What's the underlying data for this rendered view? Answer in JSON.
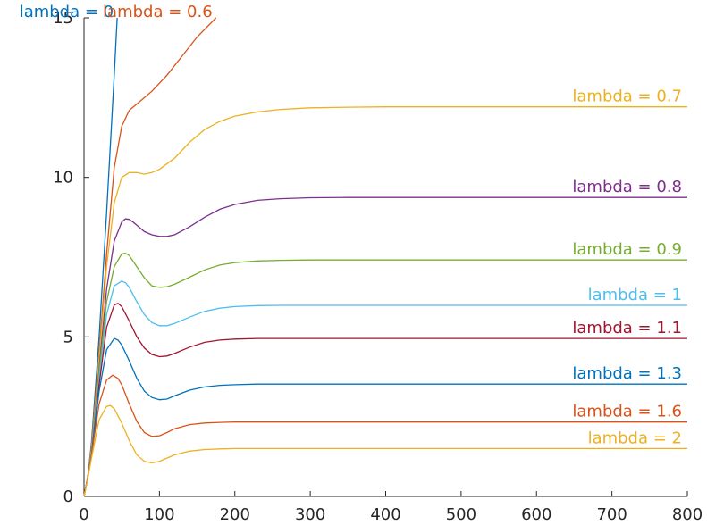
{
  "chart_data": {
    "type": "line",
    "title": "",
    "xlabel": "",
    "ylabel": "",
    "xlim": [
      0,
      800
    ],
    "ylim": [
      0,
      15
    ],
    "x_ticks": [
      0,
      100,
      200,
      300,
      400,
      500,
      600,
      700,
      800
    ],
    "y_ticks": [
      0,
      5,
      10,
      15
    ],
    "grid": false,
    "legend": "none",
    "series": [
      {
        "name": "lambda = 0",
        "color": "#0072BD",
        "x": [
          0,
          5,
          10,
          20,
          30,
          40,
          44
        ],
        "y": [
          0,
          0.6,
          1.7,
          5.0,
          8.9,
          13.2,
          15.0
        ]
      },
      {
        "name": "lambda = 0.6",
        "color": "#D95319",
        "x": [
          0,
          5,
          10,
          20,
          30,
          40,
          50,
          60,
          70,
          90,
          110,
          130,
          150,
          175
        ],
        "y": [
          0,
          0.6,
          1.6,
          4.5,
          7.6,
          10.3,
          11.6,
          12.1,
          12.3,
          12.7,
          13.2,
          13.8,
          14.4,
          15.0
        ]
      },
      {
        "name": "lambda = 0.7",
        "color": "#EDB120",
        "x": [
          0,
          5,
          10,
          20,
          30,
          40,
          50,
          60,
          70,
          80,
          90,
          100,
          120,
          140,
          160,
          180,
          200,
          230,
          260,
          300,
          350,
          400,
          500,
          600,
          700,
          800
        ],
        "y": [
          0,
          0.6,
          1.5,
          4.3,
          7.2,
          9.2,
          10.0,
          10.15,
          10.15,
          10.1,
          10.15,
          10.25,
          10.6,
          11.1,
          11.5,
          11.75,
          11.92,
          12.05,
          12.13,
          12.18,
          12.2,
          12.21,
          12.21,
          12.21,
          12.21,
          12.21
        ]
      },
      {
        "name": "lambda = 0.8",
        "color": "#7E2F8E",
        "x": [
          0,
          5,
          10,
          20,
          30,
          40,
          50,
          55,
          60,
          65,
          70,
          80,
          90,
          100,
          110,
          120,
          140,
          160,
          180,
          200,
          230,
          260,
          300,
          350,
          400,
          500,
          600,
          700,
          800
        ],
        "y": [
          0,
          0.6,
          1.4,
          4.0,
          6.5,
          8.0,
          8.6,
          8.7,
          8.68,
          8.6,
          8.5,
          8.3,
          8.2,
          8.15,
          8.15,
          8.2,
          8.45,
          8.75,
          9.0,
          9.15,
          9.28,
          9.33,
          9.36,
          9.37,
          9.37,
          9.37,
          9.37,
          9.37,
          9.37
        ]
      },
      {
        "name": "lambda = 0.9",
        "color": "#77AC30",
        "x": [
          0,
          5,
          10,
          20,
          30,
          40,
          50,
          55,
          60,
          70,
          80,
          90,
          100,
          110,
          120,
          140,
          160,
          180,
          200,
          230,
          260,
          300,
          350,
          400,
          500,
          600,
          700,
          800
        ],
        "y": [
          0,
          0.6,
          1.4,
          3.9,
          6.1,
          7.2,
          7.6,
          7.62,
          7.55,
          7.2,
          6.85,
          6.6,
          6.55,
          6.57,
          6.65,
          6.87,
          7.1,
          7.25,
          7.33,
          7.38,
          7.4,
          7.41,
          7.41,
          7.41,
          7.41,
          7.41,
          7.41,
          7.41
        ]
      },
      {
        "name": "lambda = 1",
        "color": "#4DBEEE",
        "x": [
          0,
          5,
          10,
          20,
          30,
          40,
          50,
          55,
          60,
          70,
          80,
          90,
          100,
          110,
          120,
          140,
          160,
          180,
          200,
          230,
          260,
          300,
          350,
          400,
          500,
          600,
          700,
          800
        ],
        "y": [
          0,
          0.6,
          1.4,
          3.7,
          5.7,
          6.6,
          6.75,
          6.7,
          6.55,
          6.1,
          5.7,
          5.45,
          5.35,
          5.35,
          5.42,
          5.62,
          5.8,
          5.9,
          5.95,
          5.98,
          5.99,
          5.99,
          5.99,
          5.99,
          5.99,
          5.99,
          5.99,
          5.99
        ]
      },
      {
        "name": "lambda = 1.1",
        "color": "#A2142F",
        "x": [
          0,
          5,
          10,
          20,
          30,
          40,
          45,
          50,
          60,
          70,
          80,
          90,
          100,
          110,
          120,
          140,
          160,
          180,
          200,
          230,
          260,
          300,
          350,
          400,
          500,
          600,
          700,
          800
        ],
        "y": [
          0,
          0.6,
          1.3,
          3.5,
          5.3,
          6.0,
          6.05,
          5.95,
          5.5,
          5.0,
          4.65,
          4.45,
          4.38,
          4.4,
          4.48,
          4.68,
          4.83,
          4.9,
          4.93,
          4.95,
          4.95,
          4.95,
          4.95,
          4.95,
          4.95,
          4.95,
          4.95,
          4.95
        ]
      },
      {
        "name": "lambda = 1.3",
        "color": "#0072BD",
        "x": [
          0,
          5,
          10,
          20,
          30,
          40,
          45,
          50,
          60,
          70,
          80,
          90,
          100,
          110,
          120,
          140,
          160,
          180,
          200,
          230,
          260,
          300,
          350,
          400,
          500,
          600,
          700,
          800
        ],
        "y": [
          0,
          0.6,
          1.3,
          3.3,
          4.6,
          4.95,
          4.9,
          4.75,
          4.25,
          3.7,
          3.3,
          3.1,
          3.03,
          3.05,
          3.15,
          3.33,
          3.43,
          3.48,
          3.5,
          3.52,
          3.52,
          3.52,
          3.52,
          3.52,
          3.52,
          3.52,
          3.52,
          3.52
        ]
      },
      {
        "name": "lambda = 1.6",
        "color": "#D95319",
        "x": [
          0,
          5,
          10,
          20,
          30,
          38,
          45,
          50,
          60,
          70,
          80,
          90,
          100,
          110,
          120,
          140,
          160,
          180,
          200,
          230,
          260,
          300,
          350,
          400,
          500,
          600,
          700,
          800
        ],
        "y": [
          0,
          0.6,
          1.3,
          2.9,
          3.65,
          3.8,
          3.7,
          3.5,
          2.9,
          2.35,
          2.0,
          1.88,
          1.9,
          2.0,
          2.12,
          2.25,
          2.3,
          2.32,
          2.33,
          2.33,
          2.33,
          2.33,
          2.33,
          2.33,
          2.33,
          2.33,
          2.33,
          2.33
        ]
      },
      {
        "name": "lambda = 2",
        "color": "#EDB120",
        "x": [
          0,
          5,
          10,
          20,
          30,
          35,
          40,
          50,
          60,
          70,
          80,
          90,
          100,
          110,
          120,
          140,
          160,
          180,
          200,
          230,
          260,
          300,
          350,
          400,
          500,
          600,
          700,
          800
        ],
        "y": [
          0,
          0.55,
          1.2,
          2.4,
          2.82,
          2.85,
          2.75,
          2.3,
          1.75,
          1.3,
          1.1,
          1.05,
          1.1,
          1.2,
          1.3,
          1.42,
          1.47,
          1.49,
          1.5,
          1.5,
          1.5,
          1.5,
          1.5,
          1.5,
          1.5,
          1.5,
          1.5,
          1.5
        ]
      }
    ]
  }
}
